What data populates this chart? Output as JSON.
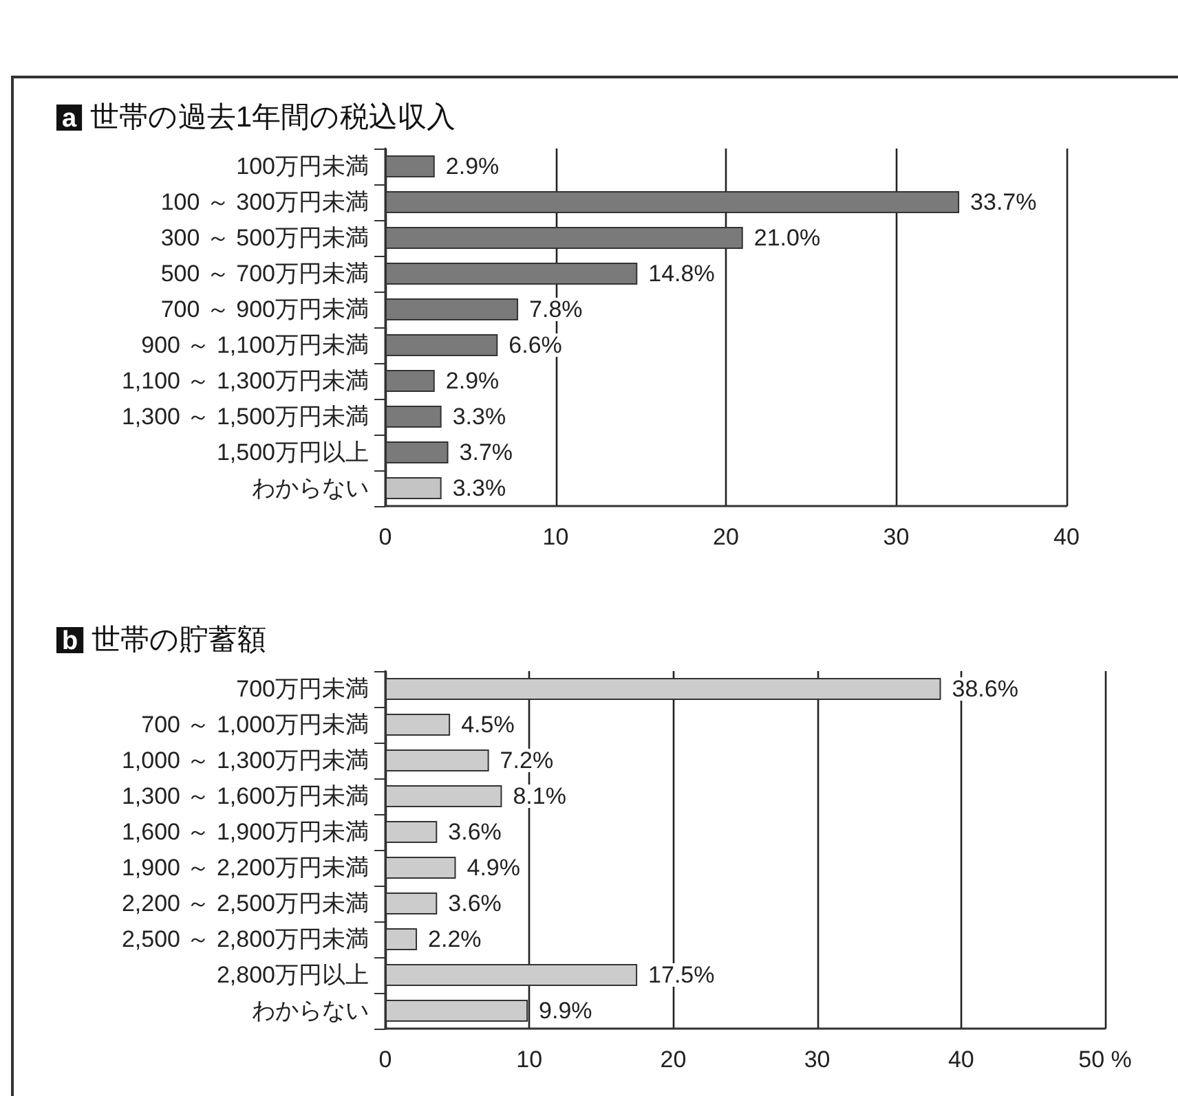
{
  "chart_data": [
    {
      "type": "bar",
      "orientation": "horizontal",
      "title": "a 世帯の過去1年間の税込収入",
      "categories": [
        "100万円未満",
        "100 ～ 300万円未満",
        "300 ～ 500万円未満",
        "500 ～ 700万円未満",
        "700 ～ 900万円未満",
        "900 ～ 1,100万円未満",
        "1,100 ～ 1,300万円未満",
        "1,300 ～ 1,500万円未満",
        "1,500万円以上",
        "わからない"
      ],
      "values": [
        2.9,
        33.7,
        21.0,
        14.8,
        7.8,
        6.6,
        2.9,
        3.3,
        3.7,
        3.3
      ],
      "value_labels": [
        "2.9%",
        "33.7%",
        "21.0%",
        "14.8%",
        "7.8%",
        "6.6%",
        "2.9%",
        "3.3%",
        "3.7%",
        "3.3%"
      ],
      "colors": [
        "#7a7a7a",
        "#7a7a7a",
        "#7a7a7a",
        "#7a7a7a",
        "#7a7a7a",
        "#7a7a7a",
        "#7a7a7a",
        "#7a7a7a",
        "#7a7a7a",
        "#c4c4c4"
      ],
      "xlim": [
        0,
        40
      ],
      "xticks": [
        0,
        10,
        20,
        30,
        40
      ],
      "grid": "x"
    },
    {
      "type": "bar",
      "orientation": "horizontal",
      "title": "b 世帯の貯蓄額",
      "categories": [
        "700万円未満",
        "700 ～ 1,000万円未満",
        "1,000 ～ 1,300万円未満",
        "1,300 ～ 1,600万円未満",
        "1,600 ～ 1,900万円未満",
        "1,900 ～ 2,200万円未満",
        "2,200 ～ 2,500万円未満",
        "2,500 ～ 2,800万円未満",
        "2,800万円以上",
        "わからない"
      ],
      "values": [
        38.6,
        4.5,
        7.2,
        8.1,
        3.6,
        4.9,
        3.6,
        2.2,
        17.5,
        9.9
      ],
      "value_labels": [
        "38.6%",
        "4.5%",
        "7.2%",
        "8.1%",
        "3.6%",
        "4.9%",
        "3.6%",
        "2.2%",
        "17.5%",
        "9.9%"
      ],
      "color": "#cccccc",
      "xlim": [
        0,
        50
      ],
      "xticks": [
        0,
        10,
        20,
        30,
        40,
        {
          "value": 50,
          "label": "50 %"
        }
      ],
      "grid": "x"
    }
  ]
}
